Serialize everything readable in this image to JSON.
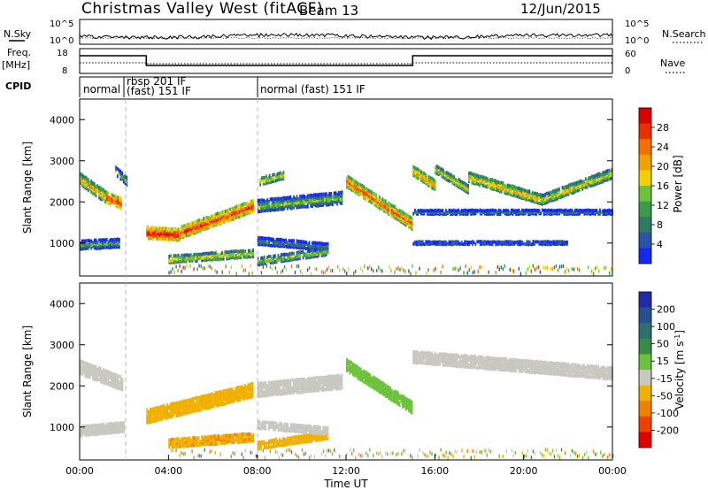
{
  "header": {
    "station": "Christmas Valley West (fitACF)",
    "beam": "Beam 13",
    "date": "12/Jun/2015"
  },
  "side_labels": {
    "nsky": "N.Sky",
    "nsearch": "N.Search",
    "freq": "Freq.",
    "freq_unit": "[MHz]",
    "nave": "Nave",
    "cpid": "CPID"
  },
  "noise_panel": {
    "left_ticks": [
      "10^5",
      "10^0"
    ],
    "right_ticks": [
      "10^5",
      "10^0"
    ]
  },
  "freq_panel": {
    "left_ticks": [
      "18",
      "8"
    ],
    "right_ticks": [
      "60",
      "0"
    ],
    "freq_segments": [
      {
        "start_h": 0.0,
        "end_h": 3.0,
        "level": "high"
      },
      {
        "start_h": 3.0,
        "end_h": 15.0,
        "level": "low"
      },
      {
        "start_h": 15.0,
        "end_h": 24.0,
        "level": "high"
      }
    ]
  },
  "cpid_labels": [
    "normal",
    "rbsp 201 IF",
    "(fast) 151 IF",
    "normal (fast) 151 IF"
  ],
  "colors": {
    "power": [
      "#1428f0",
      "#2a55a6",
      "#2e7a66",
      "#3c9a4a",
      "#6cc23a",
      "#f0d000",
      "#f0a000",
      "#f07000",
      "#e83000",
      "#d80000"
    ],
    "velocity": [
      "#1e2aa8",
      "#28508e",
      "#2d7070",
      "#3a8a48",
      "#6cc23a",
      "#c8c8c0",
      "#f0b000",
      "#f08000",
      "#f04000",
      "#e00000"
    ]
  },
  "chart_data": [
    {
      "type": "heatmap",
      "panel": "power",
      "ylabel": "Slant Range [km]",
      "xlabel": "",
      "x_range_hours": [
        0,
        24
      ],
      "ylim": [
        200,
        4500
      ],
      "y_ticks": [
        1000,
        2000,
        3000,
        4000
      ],
      "colorbar_label": "Power [dB]",
      "colorbar_ticks": [
        "4",
        "8",
        "12",
        "16",
        "20",
        "24",
        "28"
      ],
      "colorbar_range": [
        0,
        30
      ],
      "echo_bands": [
        {
          "start_h": 0.0,
          "end_h": 1.2,
          "range_start_km": 2550,
          "range_end_km": 2100,
          "thickness_km": 300,
          "power_db": 20
        },
        {
          "start_h": 1.2,
          "end_h": 1.9,
          "range_start_km": 2100,
          "range_end_km": 1950,
          "thickness_km": 280,
          "power_db": 26
        },
        {
          "start_h": 0.0,
          "end_h": 1.8,
          "range_start_km": 950,
          "range_end_km": 1000,
          "thickness_km": 230,
          "power_db": 12
        },
        {
          "start_h": 1.6,
          "end_h": 2.1,
          "range_start_km": 2750,
          "range_end_km": 2500,
          "thickness_km": 220,
          "power_db": 14
        },
        {
          "start_h": 3.0,
          "end_h": 4.5,
          "range_start_km": 1250,
          "range_end_km": 1200,
          "thickness_km": 300,
          "power_db": 28
        },
        {
          "start_h": 4.5,
          "end_h": 7.8,
          "range_start_km": 1250,
          "range_end_km": 1900,
          "thickness_km": 300,
          "power_db": 26
        },
        {
          "start_h": 4.0,
          "end_h": 7.8,
          "range_start_km": 600,
          "range_end_km": 750,
          "thickness_km": 200,
          "power_db": 18
        },
        {
          "start_h": 8.0,
          "end_h": 11.8,
          "range_start_km": 1900,
          "range_end_km": 2100,
          "thickness_km": 300,
          "power_db": 14
        },
        {
          "start_h": 8.1,
          "end_h": 9.2,
          "range_start_km": 2500,
          "range_end_km": 2650,
          "thickness_km": 200,
          "power_db": 18
        },
        {
          "start_h": 8.0,
          "end_h": 11.2,
          "range_start_km": 1050,
          "range_end_km": 900,
          "thickness_km": 200,
          "power_db": 10
        },
        {
          "start_h": 8.0,
          "end_h": 11.2,
          "range_start_km": 550,
          "range_end_km": 800,
          "thickness_km": 200,
          "power_db": 16
        },
        {
          "start_h": 12.0,
          "end_h": 15.0,
          "range_start_km": 2500,
          "range_end_km": 1450,
          "thickness_km": 300,
          "power_db": 24
        },
        {
          "start_h": 15.0,
          "end_h": 16.0,
          "range_start_km": 2750,
          "range_end_km": 2400,
          "thickness_km": 250,
          "power_db": 22
        },
        {
          "start_h": 16.0,
          "end_h": 17.5,
          "range_start_km": 2800,
          "range_end_km": 2300,
          "thickness_km": 220,
          "power_db": 18
        },
        {
          "start_h": 17.5,
          "end_h": 20.8,
          "range_start_km": 2600,
          "range_end_km": 2050,
          "thickness_km": 250,
          "power_db": 20
        },
        {
          "start_h": 20.8,
          "end_h": 24.0,
          "range_start_km": 2050,
          "range_end_km": 2700,
          "thickness_km": 250,
          "power_db": 18
        },
        {
          "start_h": 15.0,
          "end_h": 24.0,
          "range_start_km": 1750,
          "range_end_km": 1750,
          "thickness_km": 120,
          "power_db": 8
        },
        {
          "start_h": 15.0,
          "end_h": 22.0,
          "range_start_km": 1000,
          "range_end_km": 1000,
          "thickness_km": 100,
          "power_db": 10
        }
      ]
    },
    {
      "type": "heatmap",
      "panel": "velocity",
      "ylabel": "Slant Range [km]",
      "xlabel": "Time UT",
      "x_range_hours": [
        0,
        24
      ],
      "ylim": [
        200,
        4500
      ],
      "y_ticks": [
        1000,
        2000,
        3000,
        4000
      ],
      "x_ticks": [
        "00:00",
        "04:00",
        "08:00",
        "12:00",
        "16:00",
        "20:00",
        "00:00"
      ],
      "colorbar_label": "Velocity [m s^-1]",
      "colorbar_ticks": [
        "200",
        "100",
        "50",
        "15",
        "-15",
        "-50",
        "-100",
        "-200"
      ],
      "echo_bands": [
        {
          "start_h": 0.0,
          "end_h": 1.9,
          "range_start_km": 2450,
          "range_end_km": 2050,
          "thickness_km": 350,
          "velocity_ms": 0
        },
        {
          "start_h": 0.0,
          "end_h": 2.0,
          "range_start_km": 900,
          "range_end_km": 1000,
          "thickness_km": 250,
          "velocity_ms": 0
        },
        {
          "start_h": 3.0,
          "end_h": 7.8,
          "range_start_km": 1250,
          "range_end_km": 1900,
          "thickness_km": 350,
          "velocity_ms": -40
        },
        {
          "start_h": 4.0,
          "end_h": 7.8,
          "range_start_km": 600,
          "range_end_km": 750,
          "thickness_km": 220,
          "velocity_ms": -45
        },
        {
          "start_h": 8.0,
          "end_h": 11.2,
          "range_start_km": 550,
          "range_end_km": 800,
          "thickness_km": 200,
          "velocity_ms": -40
        },
        {
          "start_h": 8.0,
          "end_h": 11.8,
          "range_start_km": 1900,
          "range_end_km": 2100,
          "thickness_km": 350,
          "velocity_ms": 0
        },
        {
          "start_h": 8.0,
          "end_h": 11.2,
          "range_start_km": 1050,
          "range_end_km": 900,
          "thickness_km": 200,
          "velocity_ms": 0
        },
        {
          "start_h": 12.0,
          "end_h": 15.0,
          "range_start_km": 2500,
          "range_end_km": 1450,
          "thickness_km": 300,
          "velocity_ms": 40
        },
        {
          "start_h": 15.0,
          "end_h": 24.0,
          "range_start_km": 2700,
          "range_end_km": 2300,
          "thickness_km": 300,
          "velocity_ms": 0
        }
      ]
    }
  ]
}
